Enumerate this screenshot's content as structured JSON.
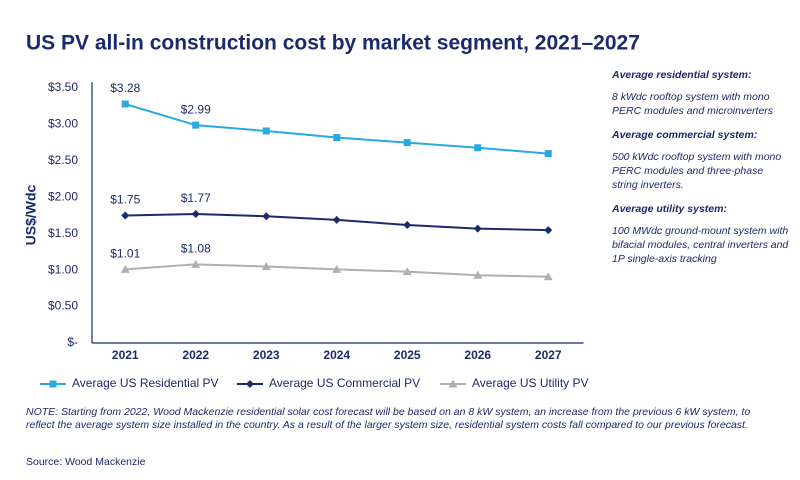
{
  "chart_data": {
    "type": "line",
    "title": "US PV all-in construction cost by market segment, 2021–2027",
    "y_label": "US$/Wdc",
    "categories": [
      "2021",
      "2022",
      "2023",
      "2024",
      "2025",
      "2026",
      "2027"
    ],
    "series": [
      {
        "name": "Average US Residential PV",
        "color": "#29a9e0",
        "marker": "square",
        "values": [
          3.28,
          2.99,
          2.91,
          2.82,
          2.75,
          2.68,
          2.6
        ],
        "value_labels": [
          "$3.28",
          "$2.99",
          null,
          null,
          null,
          null,
          null
        ]
      },
      {
        "name": "Average US Commercial PV",
        "color": "#1b2a6b",
        "marker": "diamond",
        "values": [
          1.75,
          1.77,
          1.74,
          1.69,
          1.62,
          1.57,
          1.55
        ],
        "value_labels": [
          "$1.75",
          "$1.77",
          null,
          null,
          null,
          null,
          null
        ]
      },
      {
        "name": "Average US Utility PV",
        "color": "#b0b0b0",
        "marker": "triangle",
        "values": [
          1.01,
          1.08,
          1.05,
          1.01,
          0.98,
          0.93,
          0.91
        ],
        "value_labels": [
          "$1.01",
          "$1.08",
          null,
          null,
          null,
          null,
          null
        ]
      }
    ],
    "ylim": [
      0,
      3.5
    ],
    "yticks": [
      {
        "value": 0,
        "label": "$-"
      },
      {
        "value": 0.5,
        "label": "$0.50"
      },
      {
        "value": 1,
        "label": "$1.00"
      },
      {
        "value": 1.5,
        "label": "$1.50"
      },
      {
        "value": 2,
        "label": "$2.00"
      },
      {
        "value": 2.5,
        "label": "$2.50"
      },
      {
        "value": 3,
        "label": "$3.00"
      },
      {
        "value": 3.5,
        "label": "$3.50"
      }
    ],
    "grid": false,
    "legend": "bottom",
    "side_notes": [
      {
        "heading": "Average residential system:",
        "text": "8 kWdc rooftop system with mono PERC modules and microinverters"
      },
      {
        "heading": "Average commercial system:",
        "text": "500 kWdc rooftop system with mono PERC modules and three-phase string inverters."
      },
      {
        "heading": "Average utility system:",
        "text": "100 MWdc ground-mount system with bifacial modules, central inverters and 1P single-axis tracking"
      }
    ],
    "note": "NOTE: Starting from 2022, Wood Mackenzie residential solar cost forecast will be based on an 8 kW system, an increase from the previous 6 kW system, to reflect the average system size installed in the country. As a result of the larger system size, residential system costs fall compared to our previous forecast.",
    "source": "Source: Wood Mackenzie"
  }
}
